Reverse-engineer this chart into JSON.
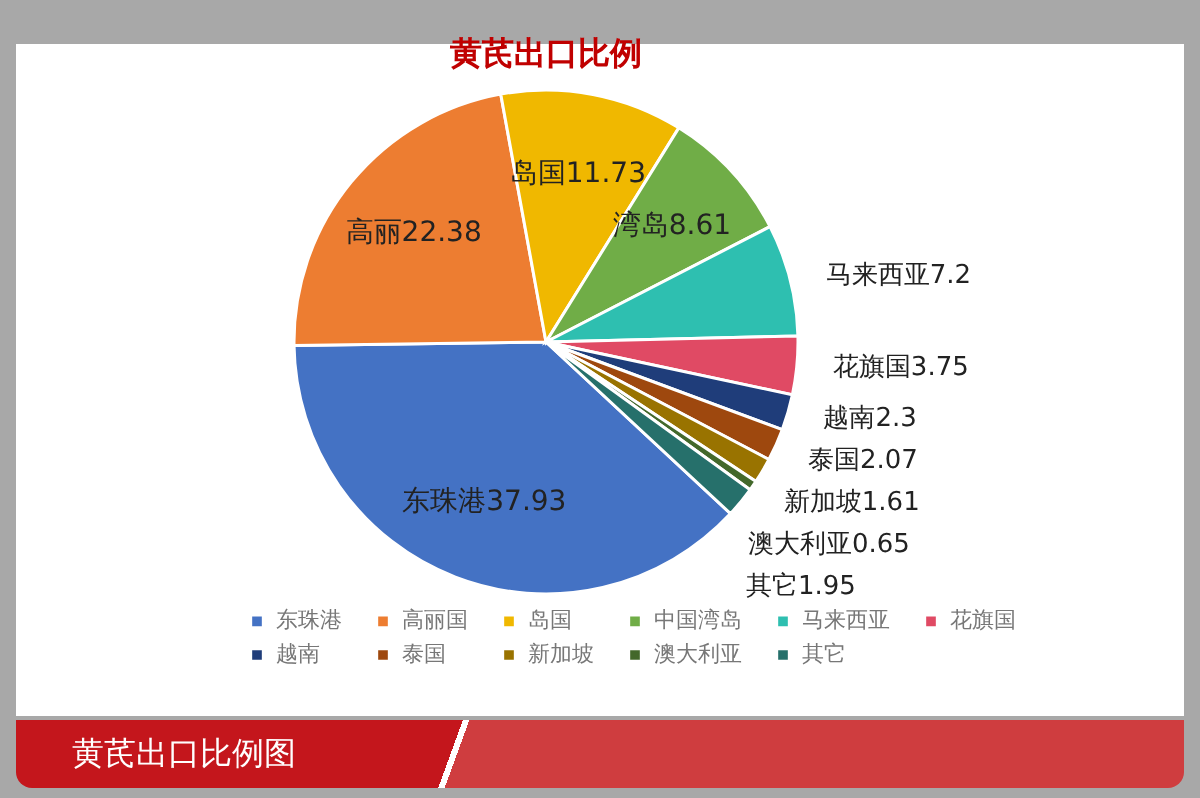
{
  "chart_data": {
    "type": "pie",
    "title": "黄芪出口比例",
    "categories": [
      "东珠港",
      "高丽国",
      "岛国",
      "中国湾岛",
      "马来西亚",
      "花旗国",
      "越南",
      "泰国",
      "新加坡",
      "澳大利亚",
      "其它"
    ],
    "values": [
      37.93,
      22.38,
      11.73,
      8.61,
      7.2,
      3.75,
      2.3,
      2.07,
      1.61,
      0.65,
      1.95
    ],
    "colors": [
      "#4472c4",
      "#ed7d31",
      "#f0b800",
      "#70ad47",
      "#2ebfb0",
      "#e04a64",
      "#1f3d7a",
      "#9e480e",
      "#997300",
      "#43682b",
      "#26706b"
    ],
    "value_labels": [
      "东珠港37.93",
      "高丽22.38",
      "岛国11.73",
      "湾岛8.61",
      "马来西亚7.2",
      "花旗国3.75",
      "越南2.3",
      "泰国2.07",
      "新加坡1.61",
      "澳大利亚0.65",
      "其它1.95"
    ],
    "legend": "bottom",
    "annotations": [
      "黄芪出口比例图"
    ]
  }
}
